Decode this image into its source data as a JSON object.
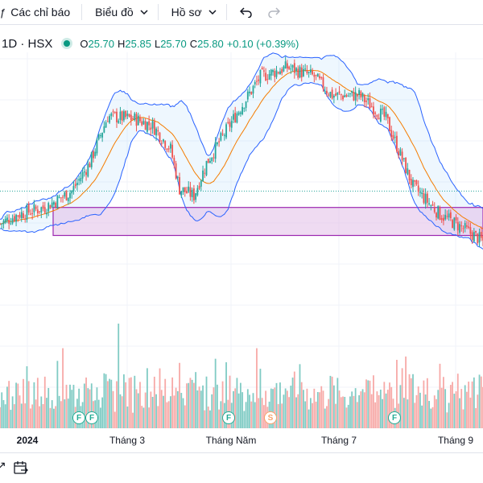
{
  "toolbar": {
    "indicators_label": "Các chỉ báo",
    "chart_type_label": "Biểu đồ",
    "profile_label": "Hồ sơ"
  },
  "legend": {
    "symbol": "1D · HSX",
    "open_label": "O",
    "open": "25.70",
    "high_label": "H",
    "high": "25.85",
    "low_label": "L",
    "low": "25.70",
    "close_label": "C",
    "close": "25.80",
    "change": "+0.10 (+0.39%)"
  },
  "colors": {
    "up": "#26a69a",
    "down": "#ef5350",
    "up_vol": "#80cbc4",
    "down_vol": "#f7a9a7",
    "band": "#2962ff",
    "basis": "#f57c00",
    "zone_fill": "#e1bee7",
    "zone_border": "#9c27b0"
  },
  "x_axis": {
    "labels": [
      "2024",
      "Tháng 3",
      "Tháng Năm",
      "Tháng 7",
      "Tháng 9"
    ]
  },
  "events": [
    {
      "label": "F",
      "kind": "dividend"
    },
    {
      "label": "F",
      "kind": "dividend"
    },
    {
      "label": "F",
      "kind": "dividend"
    },
    {
      "label": "S",
      "kind": "split"
    },
    {
      "label": "F",
      "kind": "dividend"
    }
  ],
  "chart_data": {
    "type": "candlestick",
    "price_anchors": [
      [
        0,
        0.3
      ],
      [
        10,
        0.34
      ],
      [
        25,
        0.37
      ],
      [
        40,
        0.44
      ],
      [
        50,
        0.56
      ],
      [
        60,
        0.76
      ],
      [
        75,
        0.75
      ],
      [
        85,
        0.72
      ],
      [
        95,
        0.62
      ],
      [
        100,
        0.45
      ],
      [
        108,
        0.42
      ],
      [
        115,
        0.56
      ],
      [
        130,
        0.75
      ],
      [
        145,
        0.93
      ],
      [
        160,
        0.97
      ],
      [
        175,
        0.93
      ],
      [
        185,
        0.85
      ],
      [
        200,
        0.85
      ],
      [
        215,
        0.75
      ],
      [
        230,
        0.46
      ],
      [
        245,
        0.34
      ],
      [
        258,
        0.28
      ],
      [
        270,
        0.22
      ]
    ],
    "last_bar": {
      "open": 25.7,
      "high": 25.85,
      "low": 25.7,
      "close": 25.8
    },
    "band_period": 20,
    "band_stddev": 2,
    "zone": {
      "from": 0.25,
      "to": 0.37
    },
    "dotted_level": 0.44,
    "volume_spike": 3.2,
    "grid": true
  }
}
